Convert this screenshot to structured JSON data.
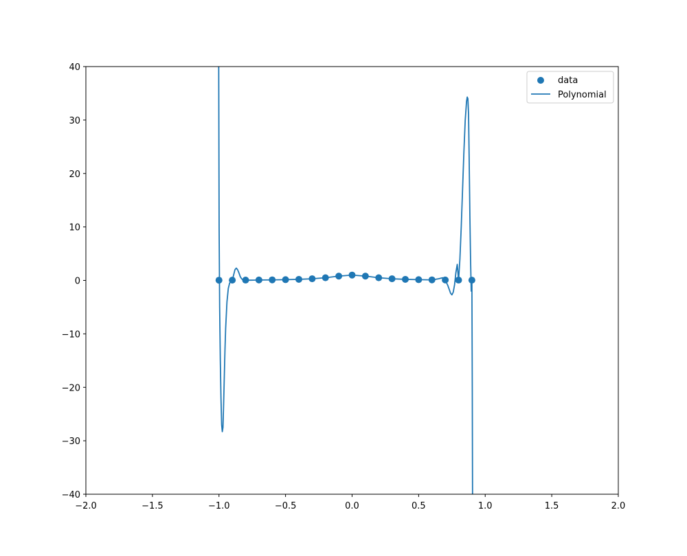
{
  "chart_data": {
    "type": "scatter",
    "title": "",
    "xlabel": "",
    "ylabel": "",
    "xlim": [
      -2.0,
      2.0
    ],
    "ylim": [
      -40,
      40
    ],
    "x_ticks": [
      -2.0,
      -1.5,
      -1.0,
      -0.5,
      0.0,
      0.5,
      1.0,
      1.5,
      2.0
    ],
    "x_tick_labels": [
      "−2.0",
      "−1.5",
      "−1.0",
      "−0.5",
      "0.0",
      "0.5",
      "1.0",
      "1.5",
      "2.0"
    ],
    "y_ticks": [
      -40,
      -30,
      -20,
      -10,
      0,
      10,
      20,
      30,
      40
    ],
    "y_tick_labels": [
      "−40",
      "−30",
      "−20",
      "−10",
      "0",
      "10",
      "20",
      "30",
      "40"
    ],
    "grid": false,
    "legend_position": "top-right",
    "color": "#1f77b4",
    "series": [
      {
        "name": "data",
        "kind": "scatter",
        "x": [
          -1.0,
          -0.9,
          -0.8,
          -0.7,
          -0.6,
          -0.5,
          -0.4,
          -0.3,
          -0.2,
          -0.1,
          0.0,
          0.1,
          0.2,
          0.3,
          0.4,
          0.5,
          0.6,
          0.7,
          0.8,
          0.9
        ],
        "y": [
          0.04,
          0.05,
          0.06,
          0.08,
          0.1,
          0.14,
          0.2,
          0.31,
          0.5,
          0.8,
          1.0,
          0.8,
          0.5,
          0.31,
          0.2,
          0.14,
          0.1,
          0.08,
          0.06,
          0.05
        ]
      },
      {
        "name": "Polynomial",
        "kind": "line",
        "x": [
          -1.002,
          -0.999,
          -0.995,
          -0.99,
          -0.985,
          -0.98,
          -0.975,
          -0.97,
          -0.965,
          -0.96,
          -0.955,
          -0.95,
          -0.94,
          -0.93,
          -0.92,
          -0.91,
          -0.9,
          -0.89,
          -0.88,
          -0.87,
          -0.86,
          -0.85,
          -0.84,
          -0.83,
          -0.82,
          -0.81,
          -0.8,
          -0.79,
          -0.78,
          -0.76,
          -0.74,
          -0.72,
          -0.7,
          -0.6,
          -0.5,
          -0.4,
          -0.3,
          -0.2,
          -0.1,
          0.0,
          0.1,
          0.2,
          0.3,
          0.4,
          0.5,
          0.6,
          0.65,
          0.68,
          0.7,
          0.72,
          0.74,
          0.75,
          0.76,
          0.77,
          0.78,
          0.79,
          0.8,
          0.81,
          0.82,
          0.83,
          0.84,
          0.85,
          0.86,
          0.865,
          0.87,
          0.875,
          0.88,
          0.885,
          0.89,
          0.895,
          0.9,
          0.903,
          0.905
        ],
        "y": [
          40,
          10,
          -5,
          -15,
          -22,
          -27,
          -28.3,
          -27.5,
          -23,
          -18,
          -13,
          -9,
          -4,
          -1.5,
          -0.5,
          -0.2,
          0.05,
          1.0,
          2.0,
          2.3,
          2.0,
          1.4,
          0.7,
          0.3,
          0.1,
          0.02,
          0.06,
          0.05,
          0.04,
          0.04,
          0.05,
          0.06,
          0.08,
          0.1,
          0.14,
          0.2,
          0.31,
          0.5,
          0.8,
          1.0,
          0.8,
          0.5,
          0.31,
          0.2,
          0.14,
          0.1,
          0.3,
          0.5,
          0.08,
          -1.0,
          -2.4,
          -2.7,
          -2.2,
          -0.8,
          1.5,
          3.0,
          0.06,
          4.0,
          10,
          17,
          24,
          30,
          33.5,
          34.3,
          34.0,
          31,
          22,
          12,
          4,
          -2,
          0.05,
          -20,
          -40
        ]
      }
    ]
  }
}
